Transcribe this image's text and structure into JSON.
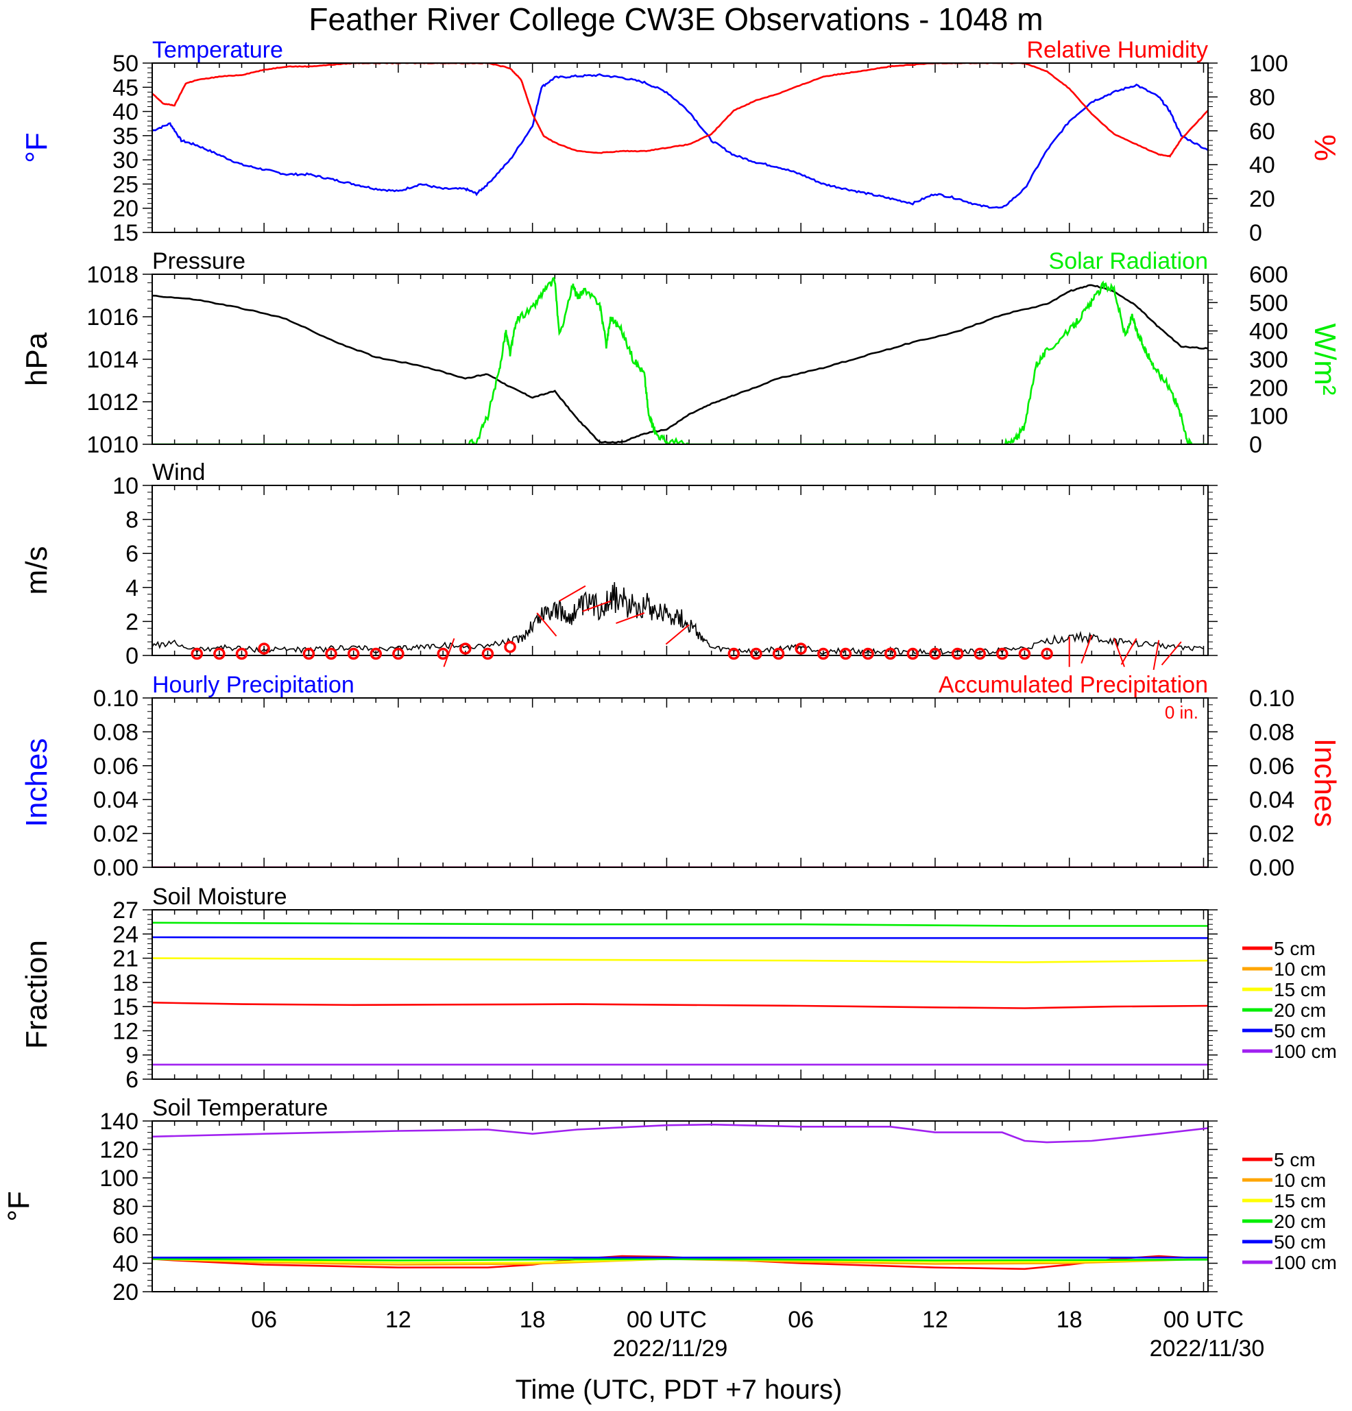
{
  "title": "Feather River College CW3E Observations - 1048 m",
  "xlabel": "Time (UTC, PDT +7 hours)",
  "x_ticks": {
    "hours": [
      6,
      12,
      18,
      24,
      30,
      36,
      42,
      48
    ],
    "labels": [
      "06",
      "12",
      "18",
      "00 UTC",
      "06",
      "12",
      "18",
      "00 UTC"
    ],
    "dates": [
      {
        "hour": 24,
        "label": "2022/11/29"
      },
      {
        "hour": 48,
        "label": "2022/11/30"
      }
    ]
  },
  "time_range_hours": [
    1,
    48.2
  ],
  "colors": {
    "blue": "#0000ff",
    "red": "#ff0000",
    "green": "#00ee00",
    "black": "#000000",
    "orange": "#ffa500",
    "yellow": "#ffff00",
    "purple": "#a020f0"
  },
  "chart_data": [
    {
      "id": "temp-rh",
      "type": "line",
      "title_left": "Temperature",
      "title_right": "Relative Humidity",
      "ylabel_left": "°F",
      "ylabel_right": "%",
      "ylim_left": [
        15,
        50
      ],
      "ylim_right": [
        0,
        100
      ],
      "yticks_left": [
        15,
        20,
        25,
        30,
        35,
        40,
        45,
        50
      ],
      "yticks_right": [
        0,
        20,
        40,
        60,
        80,
        100
      ],
      "series": [
        {
          "axis": "left",
          "color": "#0000ff",
          "x": [
            1,
            1.8,
            2.3,
            3,
            4,
            5,
            6,
            7,
            8,
            9,
            10,
            11,
            12,
            13,
            14,
            15,
            15.5,
            16,
            17,
            18,
            18.4,
            19,
            20,
            21,
            22,
            23,
            24,
            25,
            26,
            27,
            28,
            29,
            30,
            31,
            32,
            33,
            34,
            35,
            36,
            37,
            38,
            39,
            40,
            41,
            42,
            43,
            44,
            45,
            46,
            46.5,
            47,
            48.2
          ],
          "y": [
            36,
            37.5,
            34,
            33,
            31,
            29,
            28,
            27,
            27,
            26,
            25,
            24,
            23.5,
            25,
            24,
            24,
            23,
            25,
            30,
            37,
            45,
            47,
            47.3,
            47.5,
            47,
            46,
            44,
            40,
            34,
            31,
            29.5,
            28.5,
            27,
            25,
            24,
            23,
            22,
            21,
            23,
            22,
            20.5,
            20,
            24,
            32,
            38,
            42,
            44,
            45.5,
            43,
            40,
            35,
            32
          ]
        },
        {
          "axis": "right",
          "color": "#ff0000",
          "x": [
            1,
            1.5,
            2,
            2.5,
            3,
            4,
            5,
            6,
            7,
            8,
            9,
            10,
            11,
            12,
            13,
            14,
            15,
            16,
            17,
            17.5,
            18,
            18.5,
            19,
            20,
            21,
            22,
            23,
            24,
            25,
            26,
            27,
            28,
            29,
            30,
            31,
            32,
            33,
            34,
            35,
            36,
            37,
            38,
            39,
            40,
            41,
            42,
            43,
            44,
            45,
            46,
            46.5,
            47,
            48.2
          ],
          "y": [
            82,
            76,
            75,
            88,
            90,
            92,
            93,
            96,
            98,
            98,
            99,
            100,
            100,
            100,
            100,
            100,
            100,
            100,
            97,
            90,
            70,
            57,
            53,
            48,
            47,
            48,
            48,
            50,
            52,
            58,
            72,
            78,
            82,
            87,
            92,
            94,
            96,
            98,
            99,
            100,
            100,
            100,
            100,
            100,
            95,
            85,
            70,
            58,
            52,
            46,
            45,
            55,
            72
          ]
        }
      ]
    },
    {
      "id": "pressure-solar",
      "type": "line",
      "title_left": "Pressure",
      "title_right": "Solar Radiation",
      "ylabel_left": "hPa",
      "ylabel_right": "W/m²",
      "ylim_left": [
        1010,
        1018
      ],
      "ylim_right": [
        0,
        600
      ],
      "yticks_left": [
        1010,
        1012,
        1014,
        1016,
        1018
      ],
      "yticks_right": [
        0,
        100,
        200,
        300,
        400,
        500,
        600
      ],
      "series": [
        {
          "axis": "left",
          "color": "#000000",
          "x": [
            1,
            3,
            5,
            7,
            9,
            11,
            13,
            15,
            16,
            17,
            18,
            19,
            20,
            21,
            22,
            23,
            24,
            25,
            26,
            27,
            29,
            31,
            33,
            35,
            37,
            39,
            41,
            42,
            43,
            44,
            45,
            46,
            47,
            48.2
          ],
          "y": [
            1017,
            1016.8,
            1016.4,
            1015.9,
            1014.9,
            1014.1,
            1013.7,
            1013.1,
            1013.3,
            1012.7,
            1012.2,
            1012.5,
            1011.2,
            1010.1,
            1010.1,
            1010.5,
            1010.7,
            1011.4,
            1011.9,
            1012.3,
            1013.1,
            1013.6,
            1014.2,
            1014.8,
            1015.3,
            1016.1,
            1016.6,
            1017.2,
            1017.5,
            1017.2,
            1016.5,
            1015.5,
            1014.6,
            1014.5
          ]
        },
        {
          "axis": "right",
          "color": "#00ee00",
          "x": [
            1,
            15,
            15.5,
            16,
            16.5,
            16.8,
            17,
            17.3,
            18,
            18.5,
            19,
            19.2,
            19.8,
            20,
            20.3,
            21,
            21.3,
            21.5,
            22,
            22.5,
            23,
            23.2,
            23.5,
            24,
            25,
            30,
            39,
            39.5,
            40,
            40.5,
            41,
            42,
            42.5,
            43,
            43.5,
            44,
            44.5,
            44.8,
            45,
            45.3,
            45.6,
            46,
            46.5,
            47,
            47.3,
            47.5,
            48.2
          ],
          "y": [
            0,
            0,
            10,
            100,
            250,
            400,
            320,
            440,
            480,
            540,
            580,
            380,
            560,
            520,
            540,
            500,
            350,
            450,
            400,
            300,
            250,
            100,
            40,
            10,
            0,
            0,
            0,
            10,
            60,
            280,
            330,
            400,
            450,
            500,
            560,
            550,
            380,
            450,
            400,
            350,
            300,
            250,
            200,
            100,
            10,
            0,
            0
          ]
        }
      ]
    },
    {
      "id": "wind",
      "type": "line",
      "title_left": "Wind",
      "ylabel_left": "m/s",
      "ylim_left": [
        0,
        10
      ],
      "yticks_left": [
        0,
        2,
        4,
        6,
        8,
        10
      ],
      "series": [
        {
          "axis": "left",
          "color": "#000000",
          "x": [
            1,
            2,
            3,
            4,
            5,
            6,
            7,
            8,
            9,
            10,
            11,
            12,
            13,
            14,
            15,
            16,
            17,
            17.5,
            18,
            18.5,
            19,
            19.5,
            20,
            20.5,
            21,
            21.5,
            22,
            22.5,
            23,
            23.5,
            24,
            24.5,
            25,
            25.5,
            26,
            27,
            28,
            29,
            30,
            31,
            32,
            33,
            34,
            35,
            36,
            37,
            38,
            39,
            40,
            41,
            42,
            43,
            44,
            45,
            46,
            47,
            48
          ],
          "y": [
            0.6,
            0.7,
            0.3,
            0.5,
            0.4,
            0.3,
            0.4,
            0.3,
            0.4,
            0.5,
            0.3,
            0.4,
            0.5,
            0.6,
            0.5,
            0.6,
            0.8,
            1.0,
            1.8,
            2.5,
            2.8,
            2.2,
            2.6,
            3.0,
            2.8,
            3.5,
            3.2,
            2.9,
            3.1,
            2.7,
            2.5,
            2.3,
            1.8,
            1.2,
            0.4,
            0.3,
            0.2,
            0.4,
            0.5,
            0.2,
            0.3,
            0.2,
            0.3,
            0.2,
            0.2,
            0.3,
            0.2,
            0.3,
            0.4,
            0.8,
            1.1,
            1.0,
            0.8,
            0.7,
            0.6,
            0.5,
            0.4
          ]
        }
      ]
    },
    {
      "id": "precip",
      "type": "line",
      "title_left": "Hourly Precipitation",
      "title_right": "Accumulated Precipitation",
      "annotation": "0 in.",
      "ylabel_left": "Inches",
      "ylabel_right": "Inches",
      "ylim_left": [
        0,
        0.1
      ],
      "ylim_right": [
        0,
        0.1
      ],
      "yticks_left": [
        0,
        0.02,
        0.04,
        0.06,
        0.08,
        0.1
      ],
      "yticks_right": [
        0,
        0.02,
        0.04,
        0.06,
        0.08,
        0.1
      ],
      "series": [
        {
          "axis": "left",
          "color": "#0000ff",
          "x": [
            1,
            48.2
          ],
          "y": [
            0,
            0
          ]
        },
        {
          "axis": "right",
          "color": "#ff0000",
          "x": [
            1,
            48.2
          ],
          "y": [
            0,
            0
          ]
        }
      ]
    },
    {
      "id": "soil-moisture",
      "type": "line",
      "title_left": "Soil Moisture",
      "ylabel_left": "Fraction",
      "ylim_left": [
        6,
        27
      ],
      "yticks_left": [
        6,
        9,
        12,
        15,
        18,
        21,
        24,
        27
      ],
      "series": [
        {
          "name": "5 cm",
          "color": "#ff0000",
          "x": [
            1,
            5,
            10,
            20,
            30,
            36,
            40,
            44,
            48.2
          ],
          "y": [
            15.5,
            15.3,
            15.2,
            15.3,
            15.1,
            14.9,
            14.8,
            15.0,
            15.1
          ]
        },
        {
          "name": "15 cm",
          "color": "#ffff00",
          "x": [
            1,
            10,
            20,
            30,
            40,
            48.2
          ],
          "y": [
            21.0,
            20.9,
            20.8,
            20.7,
            20.5,
            20.7
          ]
        },
        {
          "name": "20 cm",
          "color": "#00ee00",
          "x": [
            1,
            10,
            20,
            30,
            40,
            48.2
          ],
          "y": [
            25.4,
            25.3,
            25.2,
            25.2,
            25.0,
            25.0
          ]
        },
        {
          "name": "50 cm",
          "color": "#0000ff",
          "x": [
            1,
            20,
            48.2
          ],
          "y": [
            23.6,
            23.5,
            23.5
          ]
        },
        {
          "name": "100 cm",
          "color": "#a020f0",
          "x": [
            1,
            48.2
          ],
          "y": [
            7.8,
            7.8
          ]
        }
      ],
      "legend": [
        "5 cm",
        "10 cm",
        "15 cm",
        "20 cm",
        "50 cm",
        "100 cm"
      ]
    },
    {
      "id": "soil-temp",
      "type": "line",
      "title_left": "Soil Temperature",
      "ylabel_left": "°F",
      "ylim_left": [
        20,
        140
      ],
      "yticks_left": [
        20,
        40,
        60,
        80,
        100,
        120,
        140
      ],
      "series": [
        {
          "name": "100 cm",
          "color": "#a020f0",
          "x": [
            1,
            6,
            12,
            16,
            18,
            20,
            24,
            26,
            30,
            34,
            36,
            39,
            40,
            41,
            43,
            46,
            48.2
          ],
          "y": [
            129,
            131,
            133,
            134,
            131,
            134,
            137,
            137.5,
            136,
            136,
            132,
            132,
            126,
            125,
            126,
            131,
            135
          ]
        },
        {
          "name": "5 cm",
          "color": "#ff0000",
          "x": [
            1,
            2,
            6,
            12,
            16,
            18,
            20,
            22,
            24,
            26,
            30,
            36,
            40,
            42,
            44,
            46,
            48.2
          ],
          "y": [
            43,
            42,
            39,
            37,
            37,
            39,
            43,
            45,
            44.5,
            43,
            40,
            37,
            36,
            39,
            43,
            45,
            43
          ]
        },
        {
          "name": "10 cm",
          "color": "#ffa500",
          "x": [
            1,
            6,
            12,
            18,
            24,
            30,
            36,
            42,
            48.2
          ],
          "y": [
            43,
            40.5,
            39,
            39.5,
            43,
            41,
            39.5,
            40,
            43
          ]
        },
        {
          "name": "15 cm",
          "color": "#ffff00",
          "x": [
            1,
            6,
            12,
            18,
            24,
            30,
            36,
            42,
            48.2
          ],
          "y": [
            43,
            41.5,
            40.5,
            40.5,
            43,
            42,
            41,
            41,
            43
          ]
        },
        {
          "name": "20 cm",
          "color": "#00ee00",
          "x": [
            1,
            12,
            24,
            36,
            48.2
          ],
          "y": [
            43,
            42,
            43,
            42,
            42.5
          ]
        },
        {
          "name": "50 cm",
          "color": "#0000ff",
          "x": [
            1,
            48.2
          ],
          "y": [
            44,
            44
          ]
        }
      ],
      "legend": [
        "5 cm",
        "10 cm",
        "15 cm",
        "20 cm",
        "50 cm",
        "100 cm"
      ]
    }
  ],
  "wind_markers": {
    "calm_hours": [
      3,
      4,
      5,
      6,
      8,
      9,
      10,
      11,
      12,
      14,
      15,
      16,
      17,
      27,
      28,
      29,
      30,
      31,
      32,
      33,
      34,
      35,
      36,
      37,
      38,
      39,
      40,
      41
    ],
    "barbs": [
      {
        "hour": 14.5,
        "speed": 1.0,
        "dir": 200
      },
      {
        "hour": 18.2,
        "speed": 2.5,
        "dir": 140
      },
      {
        "hour": 19.2,
        "speed": 3.2,
        "dir": 60
      },
      {
        "hour": 21.5,
        "speed": 3.2,
        "dir": 250
      },
      {
        "hour": 23.0,
        "speed": 2.5,
        "dir": 250
      },
      {
        "hour": 25.0,
        "speed": 1.8,
        "dir": 230
      },
      {
        "hour": 42.0,
        "speed": 1.1,
        "dir": 180
      },
      {
        "hour": 43.0,
        "speed": 1.2,
        "dir": 200
      },
      {
        "hour": 44.0,
        "speed": 1.0,
        "dir": 160
      },
      {
        "hour": 45.0,
        "speed": 1.0,
        "dir": 210
      },
      {
        "hour": 46.0,
        "speed": 0.9,
        "dir": 190
      },
      {
        "hour": 47.0,
        "speed": 0.8,
        "dir": 220
      }
    ]
  }
}
